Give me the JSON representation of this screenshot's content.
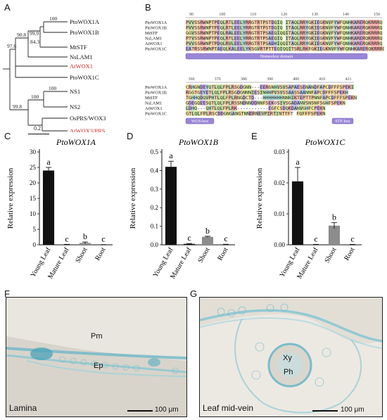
{
  "panels": {
    "A": "A",
    "B": "B",
    "C": "C",
    "D": "D",
    "E": "E",
    "F": "F",
    "G": "G"
  },
  "tree": {
    "taxa": [
      "PtoWOX1A",
      "PtoWOX1B",
      "MtSTF",
      "NsLAM1",
      "AtWOX1",
      "PtoWOX1C",
      "NS1",
      "NS2",
      "OsPRS/WOX3",
      "AtWOX3/PRS"
    ],
    "highlight_taxa": [
      "AtWOX1",
      "AtWOX3/PRS"
    ],
    "highlight_color": "#d42a2a",
    "bootstrap": [
      "100",
      "84.3",
      "99.9",
      "90.8",
      "97.6",
      "100",
      "100",
      "99.8"
    ],
    "scale": "0.2"
  },
  "alignment": {
    "block1": {
      "ruler": [
        "90",
        "100",
        "110",
        "120",
        "130",
        "140",
        "150"
      ],
      "names": [
        "PtoWOX1A",
        "PtoWOX1B",
        "MtSTF",
        "NsLAM1",
        "AtWOX1",
        "PtoWOX1C"
      ],
      "seqs": [
        "PVVSSRWNPTPEQLRTLEELYRRGTRTPSTDQIQ ITAQLRRYGKIEGKNVFYWFQNHKARERQKRRRQ",
        "PVVSSRWNPTPEQLRTLEELYRRGTRTPSTDQIQ ITAQLRRYGKIEGKNVFYWFQNHKARERQKRRRQ",
        "GGVSSRWNPTPEQLRALEELYRRGTRTPSAEQIQQITAQLRRYGKIEGKNVFYWFQNHKARERQKRRRQ",
        "PTVSSRWNPTPEQLRTLEELYRRGTRTPSAEQIQ ITAQLRRYGKIEGKNVFYWFQNHKARERQKRRRQ",
        "PVVSSRWNPTPDQLRVLEELYRRGTRTPSADHIQQITAQLRRYGKIEGKNVFYWFQNHKARERQKRRRQ",
        "EATRSSRWNPTAEQLKALEELYKSGVRTPTTEQIQQITSRLRKFGKIEGKNVFYWFQNHKARERQKRRRQV"
      ],
      "domain_label": "Homeobox domain"
    },
    "block2": {
      "ruler": [
        "360",
        "370",
        "380",
        "390",
        "400",
        "410",
        "421"
      ],
      "names": [
        "PtoWOX1A",
        "PtoWOX1B",
        "MtSTF",
        "NsLAM1",
        "AtWOX1",
        "PtoWOX1C"
      ],
      "seqs": [
        "CRHGNDEYQTLQLFPLRSGDGNN---EERGNHVSVSAPAESENANDFAPCDFFFSPEKI",
        "RGGTGEYETLQLFPLRSGDGNNNIESINHHPVSVSSAASSAANNFAPCDFFFSPEKH",
        "TGHHQDQVPHTLQLFPLRNGDCTD---HHHHHHHNNHIKTEPTTPNNFAPCDFFFSPEKN",
        "GDEGQEESQTLQLFPLRSSNDNNDDNNFSEKOSIVSGADANVSNSNFSGHFSPEKN",
        "LDHQ---QHTLQLFPLRK-----------EGFCSDQKDANVGHFCPEKN",
        "GTLQLFPLRSCDDGNGANGTNNDRNEVPIRTINTTFT  FQFFFSPEKN"
      ],
      "domain1": "WUS-box",
      "domain2": "STF-box"
    }
  },
  "charts": [
    {
      "panel": "C",
      "title": "PtoWOX1A",
      "ylabel": "Relative expression",
      "categories": [
        "Young Leaf",
        "Mature Leaf",
        "Shoot",
        "Root"
      ],
      "values": [
        24.0,
        0.1,
        0.6,
        0.05
      ],
      "errors": [
        1.0,
        0.05,
        0.3,
        0.03
      ],
      "letters": [
        "a",
        "c",
        "b",
        "c"
      ],
      "yticks": [
        "0",
        "5",
        "10",
        "15",
        "20",
        "25",
        "30"
      ],
      "ylim": [
        0,
        30
      ]
    },
    {
      "panel": "D",
      "title": "PtoWOX1B",
      "ylabel": "Relative expression",
      "categories": [
        "Young Leaf",
        "Mature Leaf",
        "Shoot",
        "Root"
      ],
      "values": [
        0.42,
        0.005,
        0.043,
        0.002
      ],
      "errors": [
        0.03,
        0.002,
        0.003,
        0.001
      ],
      "letters": [
        "a",
        "c",
        "b",
        "c"
      ],
      "yticks": [
        "0.0",
        "0.1",
        "0.2",
        "0.3",
        "0.4",
        "0.5"
      ],
      "ylim": [
        0,
        0.5
      ]
    },
    {
      "panel": "E",
      "title": "PtoWOX1C",
      "ylabel": "Relative expression",
      "categories": [
        "Young Leaf",
        "Mature Leaf",
        "Shoot",
        "Root"
      ],
      "values": [
        0.0205,
        0.0001,
        0.0062,
        0.0001
      ],
      "errors": [
        0.0045,
        5e-05,
        0.001,
        5e-05
      ],
      "letters": [
        "a",
        "c",
        "b",
        "c"
      ],
      "yticks": [
        "0.00",
        "0.01",
        "0.02",
        "0.03"
      ],
      "ylim": [
        0,
        0.03
      ]
    }
  ],
  "bar_colors": [
    "#111111",
    "#111111",
    "#8c8c8c",
    "#111111"
  ],
  "micrographs": {
    "F": {
      "caption": "Lamina",
      "labels": [
        "Pm",
        "Ep"
      ],
      "scale": "100 μm"
    },
    "G": {
      "caption": "Leaf mid-vein",
      "labels": [
        "Xy",
        "Ph"
      ],
      "scale": "100 μm"
    }
  }
}
